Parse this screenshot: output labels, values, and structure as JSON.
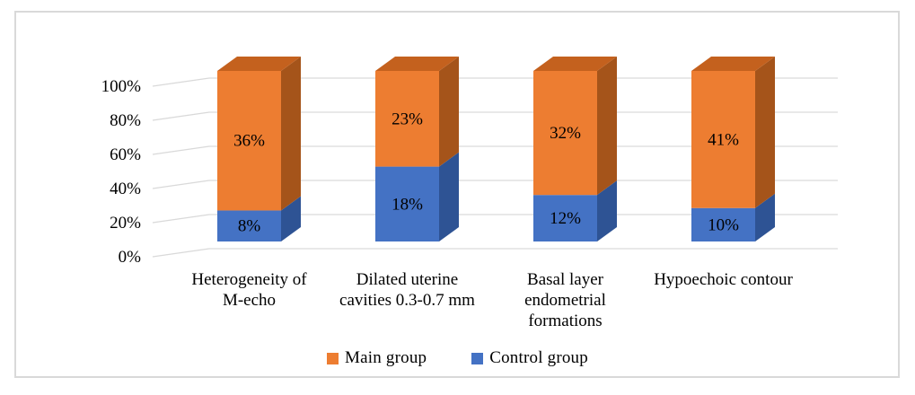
{
  "figure": {
    "background": "#FFFFFF",
    "border_color": "#D9D9D9",
    "text_color": "#000000"
  },
  "chart_data": {
    "type": "bar",
    "subtype": "3d-column-100pct-stacked",
    "title": "",
    "xlabel": "",
    "ylabel": "",
    "categories": [
      "Heterogeneity of M-echo",
      "Dilated uterine cavities 0.3-0.7 mm",
      "Basal layer endometrial formations",
      "Hypoechoic contour"
    ],
    "category_label_lines": [
      [
        "Heterogeneity of",
        "M-echo"
      ],
      [
        "Dilated uterine",
        "cavities 0.3-0.7 mm"
      ],
      [
        "Basal layer",
        "endometrial",
        "formations"
      ],
      [
        "Hypoechoic contour"
      ]
    ],
    "series": [
      {
        "name": "Main group",
        "values": [
          36,
          23,
          32,
          41
        ],
        "data_labels": [
          "36%",
          "23%",
          "32%",
          "41%"
        ],
        "color": "#ED7D31",
        "side_color": "#A5541A",
        "top_color": "#C4611E"
      },
      {
        "name": "Control group",
        "values": [
          8,
          18,
          12,
          10
        ],
        "data_labels": [
          "8%",
          "18%",
          "12%",
          "10%"
        ],
        "color": "#4472C4",
        "side_color": "#2E5394",
        "top_color": "#3A62A8"
      }
    ],
    "stacking": "percent",
    "y_axis": {
      "ticks": [
        "100%",
        "80%",
        "60%",
        "40%",
        "20%",
        "0%"
      ],
      "min": 0,
      "max": 100
    },
    "grid": true,
    "gridline_color": "#D9D9D9",
    "legend_position": "bottom"
  }
}
